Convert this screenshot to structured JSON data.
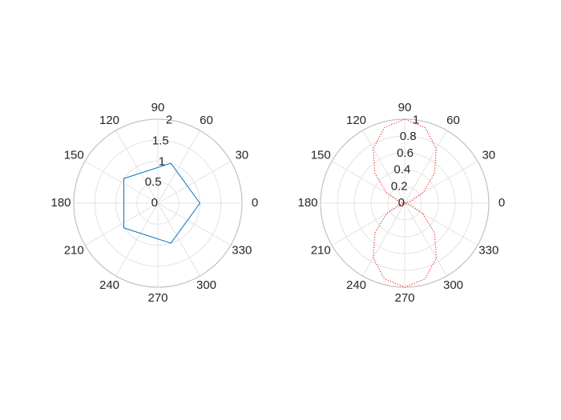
{
  "chart_data": [
    {
      "type": "polar",
      "theta": [
        0,
        72,
        144,
        216,
        288,
        360
      ],
      "values": [
        1,
        1,
        1,
        1,
        1,
        1
      ],
      "color": "#0072bd",
      "line_style": "solid",
      "rlim": [
        0,
        2
      ],
      "rticks": [
        0,
        0.5,
        1,
        1.5,
        2
      ],
      "thetaticks": [
        0,
        30,
        60,
        90,
        120,
        150,
        180,
        210,
        240,
        270,
        300,
        330
      ],
      "grid": true
    },
    {
      "type": "polar",
      "theta": [
        0,
        15,
        30,
        45,
        60,
        75,
        90,
        105,
        120,
        135,
        150,
        165,
        180,
        195,
        210,
        225,
        240,
        255,
        270,
        285,
        300,
        315,
        330,
        345,
        360
      ],
      "values": [
        0,
        0.067,
        0.25,
        0.5,
        0.75,
        0.933,
        1,
        0.933,
        0.75,
        0.5,
        0.25,
        0.067,
        0,
        0.067,
        0.25,
        0.5,
        0.75,
        0.933,
        1,
        0.933,
        0.75,
        0.5,
        0.25,
        0.067,
        0
      ],
      "color": "#ff0000",
      "line_style": "dotted",
      "rlim": [
        0,
        1
      ],
      "rticks": [
        0,
        0.2,
        0.4,
        0.6,
        0.8,
        1
      ],
      "thetaticks": [
        0,
        30,
        60,
        90,
        120,
        150,
        180,
        210,
        240,
        270,
        300,
        330
      ],
      "grid": true
    }
  ]
}
